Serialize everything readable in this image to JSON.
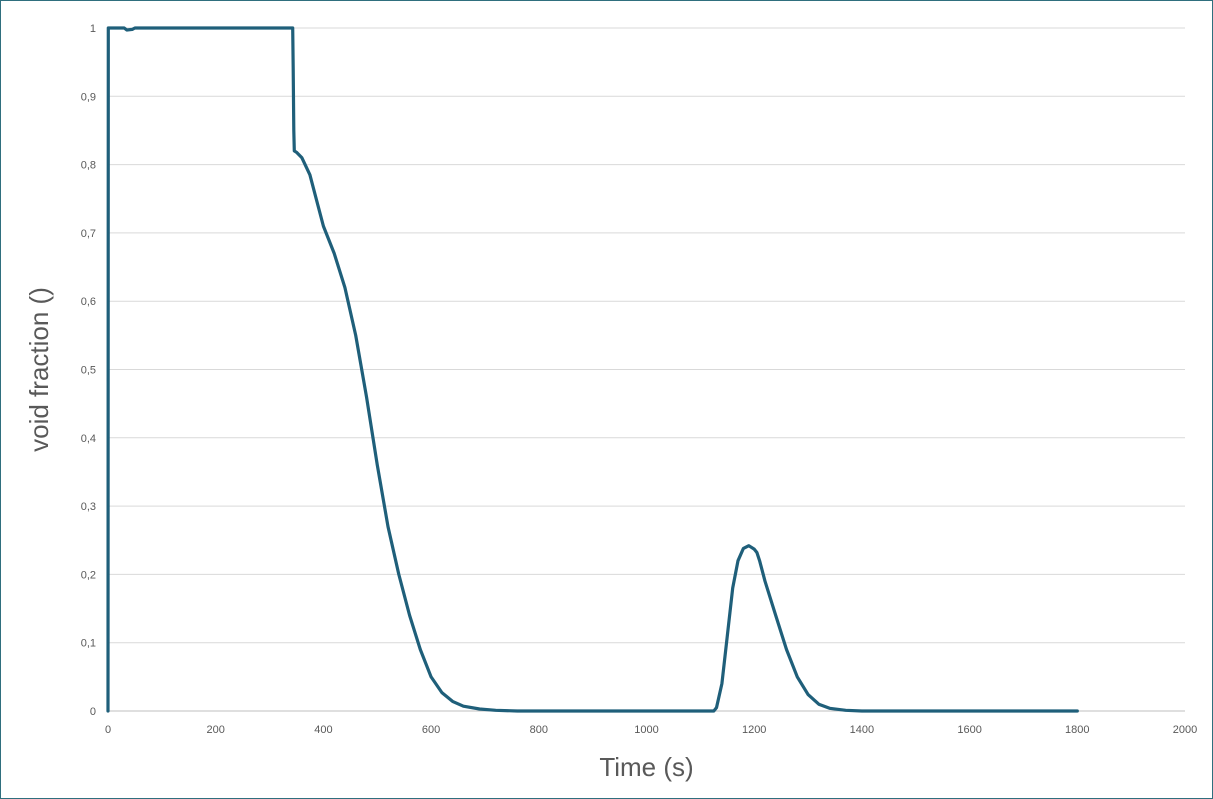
{
  "chart_data": {
    "type": "line",
    "title": "",
    "xlabel": "Time (s)",
    "ylabel": "void fraction ()",
    "xlim": [
      0,
      2000
    ],
    "ylim": [
      0,
      1
    ],
    "x_ticks": [
      "0",
      "200",
      "400",
      "600",
      "800",
      "1000",
      "1200",
      "1400",
      "1600",
      "1800",
      "2000"
    ],
    "y_ticks": [
      "0",
      "0,1",
      "0,2",
      "0,3",
      "0,4",
      "0,5",
      "0,6",
      "0,7",
      "0,8",
      "0,9",
      "1"
    ],
    "grid": "horizontal",
    "legend": "none",
    "series": [
      {
        "color": "#1f5f7a",
        "points": [
          [
            0,
            0
          ],
          [
            0.5,
            1
          ],
          [
            30,
            1
          ],
          [
            35,
            0.997
          ],
          [
            45,
            0.998
          ],
          [
            50,
            1
          ],
          [
            240,
            1
          ],
          [
            343,
            1
          ],
          [
            344,
            0.94
          ],
          [
            345,
            0.85
          ],
          [
            346,
            0.82
          ],
          [
            350,
            0.818
          ],
          [
            360,
            0.81
          ],
          [
            375,
            0.785
          ],
          [
            390,
            0.74
          ],
          [
            400,
            0.71
          ],
          [
            420,
            0.67
          ],
          [
            440,
            0.62
          ],
          [
            460,
            0.55
          ],
          [
            480,
            0.46
          ],
          [
            500,
            0.36
          ],
          [
            520,
            0.27
          ],
          [
            540,
            0.2
          ],
          [
            560,
            0.14
          ],
          [
            580,
            0.09
          ],
          [
            600,
            0.05
          ],
          [
            620,
            0.027
          ],
          [
            640,
            0.014
          ],
          [
            660,
            0.007
          ],
          [
            690,
            0.003
          ],
          [
            720,
            0.001
          ],
          [
            760,
            0
          ],
          [
            1000,
            0
          ],
          [
            1125,
            0
          ],
          [
            1130,
            0.005
          ],
          [
            1140,
            0.04
          ],
          [
            1150,
            0.11
          ],
          [
            1160,
            0.18
          ],
          [
            1170,
            0.22
          ],
          [
            1180,
            0.238
          ],
          [
            1190,
            0.242
          ],
          [
            1200,
            0.237
          ],
          [
            1205,
            0.232
          ],
          [
            1210,
            0.22
          ],
          [
            1220,
            0.19
          ],
          [
            1240,
            0.14
          ],
          [
            1260,
            0.09
          ],
          [
            1280,
            0.05
          ],
          [
            1300,
            0.024
          ],
          [
            1320,
            0.01
          ],
          [
            1340,
            0.004
          ],
          [
            1370,
            0.001
          ],
          [
            1400,
            0
          ],
          [
            1800,
            0
          ]
        ]
      }
    ]
  }
}
